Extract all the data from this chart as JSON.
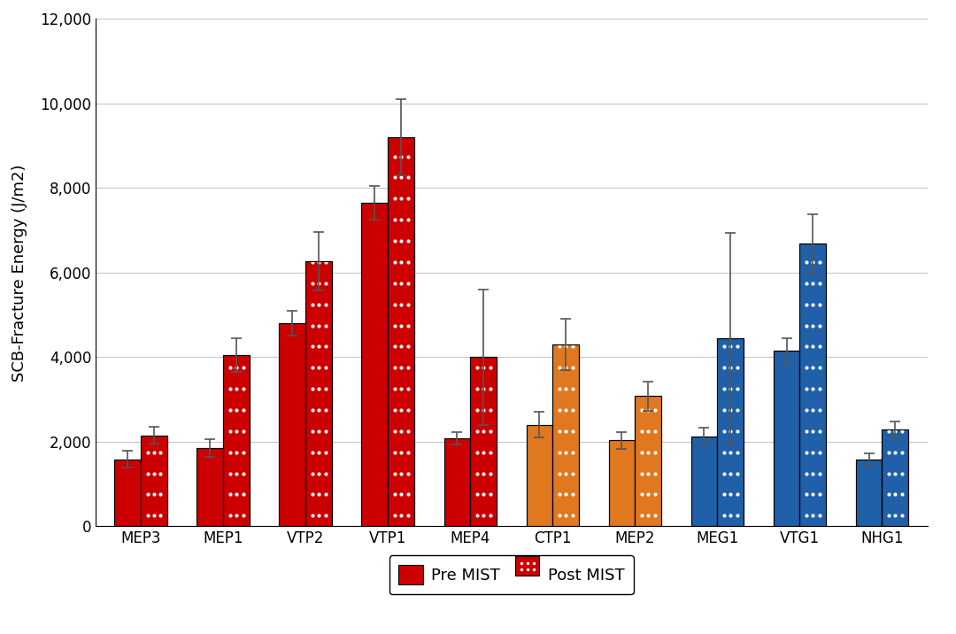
{
  "categories": [
    "MEP3",
    "MEP1",
    "VTP2",
    "VTP1",
    "MEP4",
    "CTP1",
    "MEP2",
    "MEG1",
    "VTG1",
    "NHG1"
  ],
  "pre_mist": [
    1580,
    1850,
    4800,
    7650,
    2080,
    2400,
    2030,
    2130,
    4150,
    1570
  ],
  "post_mist": [
    2150,
    4050,
    6270,
    9200,
    4000,
    4300,
    3080,
    4450,
    6680,
    2280
  ],
  "pre_err": [
    200,
    200,
    300,
    400,
    150,
    300,
    200,
    200,
    300,
    150
  ],
  "post_err": [
    200,
    400,
    700,
    900,
    1600,
    600,
    350,
    2500,
    700,
    200
  ],
  "bar_colors_pre": [
    "#CC0000",
    "#CC0000",
    "#CC0000",
    "#CC0000",
    "#CC0000",
    "#E07820",
    "#E07820",
    "#2060A8",
    "#2060A8",
    "#2060A8"
  ],
  "bar_colors_post": [
    "#CC0000",
    "#CC0000",
    "#CC0000",
    "#CC0000",
    "#CC0000",
    "#E07820",
    "#E07820",
    "#2060A8",
    "#2060A8",
    "#2060A8"
  ],
  "ylabel": "SCB-Fracture Energy (J/m2)",
  "ylim": [
    0,
    12000
  ],
  "yticks": [
    0,
    2000,
    4000,
    6000,
    8000,
    10000,
    12000
  ],
  "ytick_labels": [
    "0",
    "2,000",
    "4,000",
    "6,000",
    "8,000",
    "10,000",
    "12,000"
  ],
  "legend_pre": "Pre MIST",
  "legend_post": "Post MIST",
  "bar_width": 0.32,
  "figure_bg": "#FFFFFF",
  "axes_bg": "#FFFFFF",
  "grid_color": "#C8C8C8",
  "error_color": "#555555"
}
